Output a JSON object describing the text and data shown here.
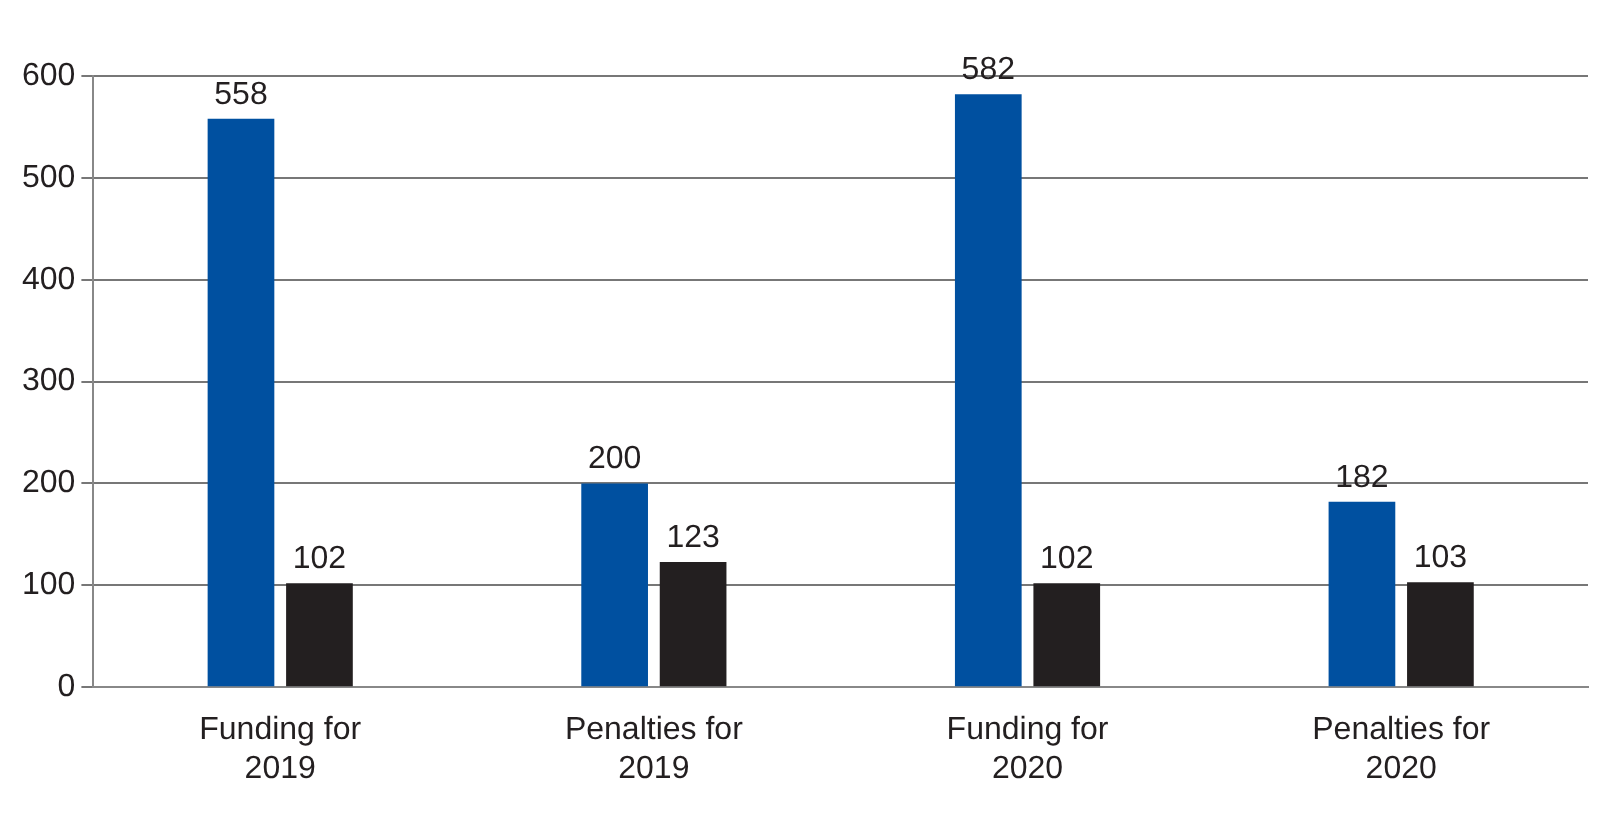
{
  "chart_data": {
    "type": "bar",
    "categories": [
      "Funding for 2019",
      "Penalties for 2019",
      "Funding for 2020",
      "Penalties for 2020"
    ],
    "series": [
      {
        "color": "#0050a0",
        "values": [
          558,
          200,
          582,
          182
        ]
      },
      {
        "color": "#231f20",
        "values": [
          102,
          123,
          102,
          103
        ]
      }
    ],
    "ylim": [
      0,
      600
    ],
    "yticks": [
      0,
      100,
      200,
      300,
      400,
      500,
      600
    ],
    "grid": "y",
    "data_labels": true,
    "legend": false
  }
}
